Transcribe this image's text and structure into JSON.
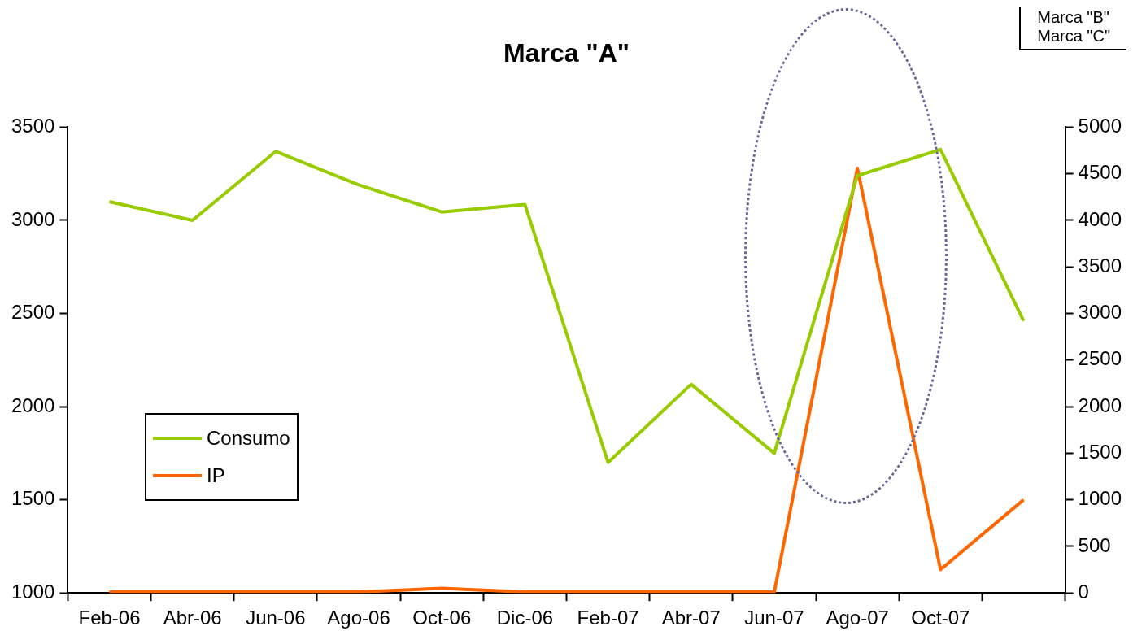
{
  "chart_data": {
    "type": "line",
    "title": "Marca \"A\"",
    "categories": [
      "Feb-06",
      "Abr-06",
      "Jun-06",
      "Ago-06",
      "Oct-06",
      "Dic-06",
      "Feb-07",
      "Abr-07",
      "Jun-07",
      "Ago-07",
      "Oct-07",
      null
    ],
    "series": [
      {
        "name": "Consumo",
        "color": "#99cc00",
        "values": [
          3100,
          3000,
          3370,
          3190,
          3045,
          3085,
          1700,
          2120,
          1750,
          3240,
          3380,
          2460
        ]
      },
      {
        "name": "IP",
        "color": "#ff6600",
        "axis": "y2",
        "values": [
          10,
          10,
          10,
          10,
          50,
          10,
          10,
          10,
          10,
          4560,
          250,
          1000
        ]
      }
    ],
    "ylim": [
      1000,
      3500
    ],
    "yticks": [
      1000,
      1500,
      2000,
      2500,
      3000,
      3500
    ],
    "y2lim": [
      0,
      5000
    ],
    "y2ticks": [
      0,
      500,
      1000,
      1500,
      2000,
      2500,
      3000,
      3500,
      4000,
      4500,
      5000
    ],
    "grid": false,
    "legend": "left",
    "marker": "none",
    "line_style": "solid",
    "annotations": [
      "Marca \"B\"",
      "Marca \"C\""
    ]
  }
}
